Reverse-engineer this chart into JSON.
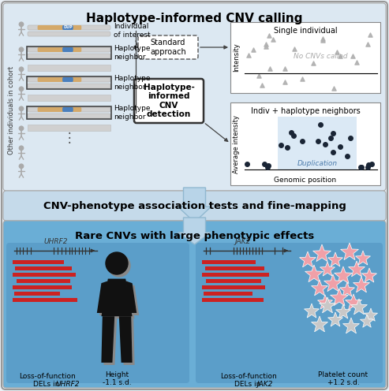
{
  "title_top": "Haplotype-informed CNV calling",
  "title_middle": "CNV-phenotype association tests and fine-mapping",
  "title_bottom": "Rare CNVs with large phenotypic effects",
  "bg_outer": "#eaf0f6",
  "bg_top_panel": "#dce8f2",
  "bg_mid_panel": "#c5daea",
  "bg_bottom_panel": "#6aaed6",
  "bg_bottom_inner": "#5b9ec9",
  "bar_tan": "#d4a96a",
  "bar_blue": "#4a7fbd",
  "bar_gray": "#d0d0d0",
  "scatter_gray": "#aaaaaa",
  "scatter_dark": "#1a2535",
  "dup_highlight": "#b8d4ec",
  "red_bar": "#cc2222",
  "arrow_fill": "#b0cfe0",
  "label1_uhrf2": "UHRF2",
  "label1_jak2": "JAK2",
  "caption1a": "Loss-of-function",
  "caption1b": "DELs in ",
  "caption1c": "UHRF2",
  "caption2a": "Height",
  "caption2b": "-1.1 s.d.",
  "caption3a": "Loss-of-function",
  "caption3b": "DELs in ",
  "caption3c": "JAK2",
  "caption4a": "Platelet count",
  "caption4b": "+1.2 s.d.",
  "standard_approach": "Standard\napproach",
  "haplo_box": "Haplotype-\ninformed\nCNV\ndetection",
  "single_individual": "Single individual",
  "no_cnvs": "No CNVs called",
  "indiv_haplo": "Indiv + haplotype neighbors",
  "duplication": "Duplication",
  "intensity_label": "Intensity",
  "avg_intensity_label": "Average intensity",
  "genomic_pos_label": "Genomic position",
  "other_label": "Other individuals in cohort",
  "individual_of_interest": "Individual\nof interest",
  "haplotype_neighbor": "Haplotype\nneighbor",
  "dup_label": "DUP"
}
